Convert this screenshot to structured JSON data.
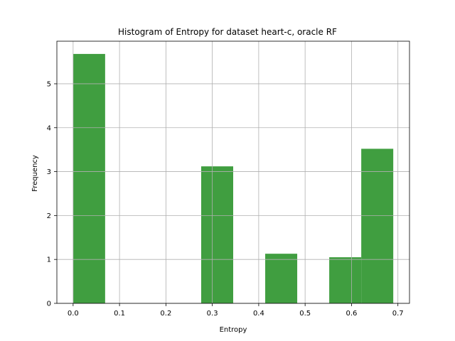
{
  "chart_data": {
    "type": "bar",
    "title": "Histogram of Entropy for dataset heart-c, oracle RF",
    "xlabel": "Entropy",
    "ylabel": "Frequency",
    "xlim": [
      -0.035,
      0.725
    ],
    "ylim": [
      0,
      5.97
    ],
    "xticks": [
      0.0,
      0.1,
      0.2,
      0.3,
      0.4,
      0.5,
      0.6,
      0.7
    ],
    "xtick_labels": [
      "0.0",
      "0.1",
      "0.2",
      "0.3",
      "0.4",
      "0.5",
      "0.6",
      "0.7"
    ],
    "yticks": [
      0,
      1,
      2,
      3,
      4,
      5
    ],
    "ytick_labels": [
      "0",
      "1",
      "2",
      "3",
      "4",
      "5"
    ],
    "grid": true,
    "bar_color": "#409e40",
    "bins": [
      {
        "x0": 0.0,
        "x1": 0.069,
        "value": 5.68
      },
      {
        "x0": 0.069,
        "x1": 0.138,
        "value": 0
      },
      {
        "x0": 0.138,
        "x1": 0.207,
        "value": 0
      },
      {
        "x0": 0.207,
        "x1": 0.276,
        "value": 0
      },
      {
        "x0": 0.276,
        "x1": 0.345,
        "value": 3.12
      },
      {
        "x0": 0.345,
        "x1": 0.414,
        "value": 0
      },
      {
        "x0": 0.414,
        "x1": 0.483,
        "value": 1.13
      },
      {
        "x0": 0.483,
        "x1": 0.552,
        "value": 0
      },
      {
        "x0": 0.552,
        "x1": 0.621,
        "value": 1.05
      },
      {
        "x0": 0.621,
        "x1": 0.69,
        "value": 3.52
      }
    ]
  }
}
